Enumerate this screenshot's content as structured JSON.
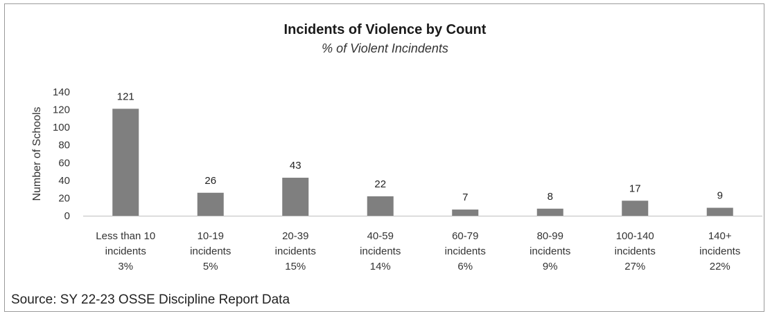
{
  "chart_data": {
    "type": "bar",
    "title": "Incidents of Violence by Count",
    "subtitle": "% of Violent Incindents",
    "ylabel": "Number of Schools",
    "xlabel": "",
    "ylim": [
      0,
      140
    ],
    "yticks": [
      "140",
      "120",
      "100",
      "80",
      "60",
      "40",
      "20",
      "0"
    ],
    "grid": false,
    "bar_color": "#7f7f7f",
    "categories": [
      [
        "Less than 10",
        "incidents",
        "3%"
      ],
      [
        "10-19",
        "incidents",
        "5%"
      ],
      [
        "20-39",
        "incidents",
        "15%"
      ],
      [
        "40-59",
        "incidents",
        "14%"
      ],
      [
        "60-79",
        "incidents",
        "6%"
      ],
      [
        "80-99",
        "incidents",
        "9%"
      ],
      [
        "100-140",
        "incidents",
        "27%"
      ],
      [
        "140+",
        "incidents",
        "22%"
      ]
    ],
    "values": [
      121,
      26,
      43,
      22,
      7,
      8,
      17,
      9
    ],
    "data_labels": [
      "121",
      "26",
      "43",
      "22",
      "7",
      "8",
      "17",
      "9"
    ]
  },
  "source": "Source: SY 22-23 OSSE Discipline Report Data"
}
